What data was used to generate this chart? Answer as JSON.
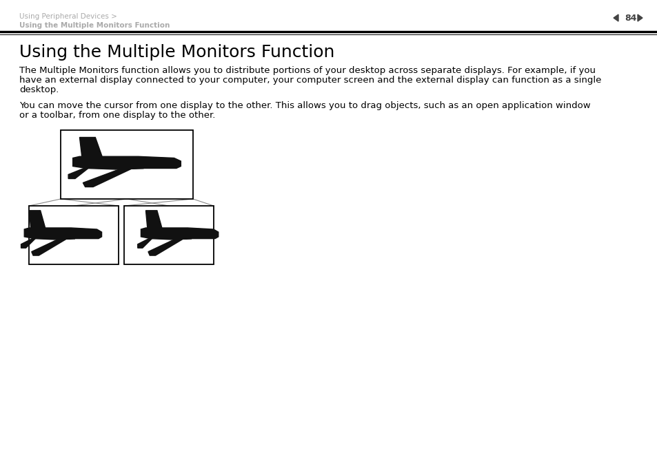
{
  "bg_color": "#ffffff",
  "header_breadcrumb1": "Using Peripheral Devices >",
  "header_breadcrumb2": "Using the Multiple Monitors Function",
  "header_breadcrumb_color": "#aaaaaa",
  "header_page_number": "84",
  "header_page_color": "#444444",
  "title": "Using the Multiple Monitors Function",
  "title_fontsize": 18,
  "title_color": "#000000",
  "body_text1_lines": [
    "The Multiple Monitors function allows you to distribute portions of your desktop across separate displays. For example, if you",
    "have an external display connected to your computer, your computer screen and the external display can function as a single",
    "desktop."
  ],
  "body_text2_lines": [
    "You can move the cursor from one display to the other. This allows you to drag objects, such as an open application window",
    "or a toolbar, from one display to the other."
  ],
  "body_fontsize": 9.5,
  "body_color": "#000000",
  "airplane_color": "#111111",
  "line_color": "#888888",
  "box_color": "#000000"
}
